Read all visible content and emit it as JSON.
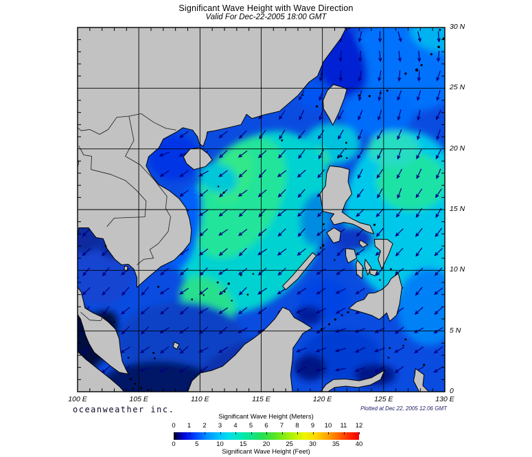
{
  "title": "Significant Wave Height with Wave Direction",
  "subtitle": "Valid For Dec-22-2005 18:00 GMT",
  "credit": "oceanweather inc.",
  "plotted_at": "Plotted at Dec 22, 2005 12.06 GMT",
  "axes": {
    "lon_labels": [
      "100 E",
      "105 E",
      "110 E",
      "115 E",
      "120 E",
      "125 E",
      "130 E"
    ],
    "lat_labels": [
      "30 N",
      "25 N",
      "20 N",
      "15 N",
      "10 N",
      "5 N",
      "0"
    ]
  },
  "colorbar": {
    "title_meters": "Significant Wave Height (Meters)",
    "title_feet": "Significant Wave Height (Feet)",
    "meters_ticks": [
      "0",
      "1",
      "2",
      "3",
      "4",
      "5",
      "6",
      "7",
      "8",
      "9",
      "10",
      "11",
      "12"
    ],
    "feet_ticks": [
      "0",
      "5",
      "10",
      "15",
      "20",
      "25",
      "30",
      "35",
      "40"
    ],
    "gradient": [
      {
        "at": 0.0,
        "color": "#000000"
      },
      {
        "at": 0.02,
        "color": "#000070"
      },
      {
        "at": 0.06,
        "color": "#0008e0"
      },
      {
        "at": 0.12,
        "color": "#0048ff"
      },
      {
        "at": 0.18,
        "color": "#0090ff"
      },
      {
        "at": 0.24,
        "color": "#00c0ff"
      },
      {
        "at": 0.3,
        "color": "#00e0e8"
      },
      {
        "at": 0.36,
        "color": "#00e8b8"
      },
      {
        "at": 0.42,
        "color": "#10e488"
      },
      {
        "at": 0.48,
        "color": "#28de52"
      },
      {
        "at": 0.54,
        "color": "#50e428"
      },
      {
        "at": 0.6,
        "color": "#8cec10"
      },
      {
        "at": 0.66,
        "color": "#c4f400"
      },
      {
        "at": 0.71,
        "color": "#f0f400"
      },
      {
        "at": 0.77,
        "color": "#ffd400"
      },
      {
        "at": 0.83,
        "color": "#ffa400"
      },
      {
        "at": 0.89,
        "color": "#ff6800"
      },
      {
        "at": 0.95,
        "color": "#ff2800"
      },
      {
        "at": 1.0,
        "color": "#ee0000"
      }
    ]
  },
  "chart_data": {
    "type": "heatmap",
    "title": "Significant Wave Height with Wave Direction",
    "valid_time": "Dec-22-2005 18:00 GMT",
    "plotted_time": "Dec 22, 2005 12.06 GMT",
    "lon_range": [
      100,
      130
    ],
    "lat_range": [
      0,
      30
    ],
    "wave_height_scale_m": [
      0,
      12
    ],
    "wave_height_scale_ft": [
      0,
      40
    ],
    "base_color": "#0a4ce0",
    "land_color": "#c2c2c2",
    "coast_color": "#000000",
    "arrow_color": "#000080",
    "field_blobs": [
      {
        "name": "east-china-sea",
        "lon": 127,
        "lat": 27,
        "rx": 5,
        "ry": 4,
        "rot": 0,
        "color": "#0072fc",
        "height_m": 1.5
      },
      {
        "name": "ne-corner",
        "lon": 129.8,
        "lat": 29.8,
        "rx": 2.6,
        "ry": 1.8,
        "rot": 0,
        "color": "#00b2f0",
        "height_m": 2
      },
      {
        "name": "china-coast-deep",
        "lon": 121.3,
        "lat": 27.6,
        "rx": 2.0,
        "ry": 3.6,
        "rot": -25,
        "color": "#0024d4",
        "height_m": 0.8
      },
      {
        "name": "east-of-taiwan",
        "lon": 124.5,
        "lat": 23,
        "rx": 3,
        "ry": 2,
        "rot": 0,
        "color": "#006cfa",
        "height_m": 1.5
      },
      {
        "name": "philippine-sea-cyan",
        "lon": 126.8,
        "lat": 14.5,
        "rx": 5.0,
        "ry": 7.0,
        "rot": 0,
        "color": "#00c8ea",
        "height_m": 2.2
      },
      {
        "name": "philippine-sea-green",
        "lon": 127.3,
        "lat": 17.3,
        "rx": 2.9,
        "ry": 2.4,
        "rot": 0,
        "color": "#1ce2a6",
        "height_m": 3
      },
      {
        "name": "philippine-sea-green-n",
        "lon": 125.8,
        "lat": 20,
        "rx": 2.1,
        "ry": 1.5,
        "rot": 0,
        "color": "#28dcc2",
        "height_m": 2.6
      },
      {
        "name": "luzon-strait",
        "lon": 120.8,
        "lat": 20.4,
        "rx": 2.3,
        "ry": 1.7,
        "rot": 0,
        "color": "#00c2de",
        "height_m": 2.3
      },
      {
        "name": "nw-luzon-green",
        "lon": 118.9,
        "lat": 19,
        "rx": 1.7,
        "ry": 1.3,
        "rot": 0,
        "color": "#26e09a",
        "height_m": 3
      },
      {
        "name": "scs-cyan-halo",
        "lon": 114.5,
        "lat": 14,
        "rx": 5.6,
        "ry": 8.0,
        "rot": 30,
        "color": "#00d2d2",
        "height_m": 2.4
      },
      {
        "name": "scs-green-core",
        "lon": 113.2,
        "lat": 16,
        "rx": 3.3,
        "ry": 5.4,
        "rot": 28,
        "color": "#22e49a",
        "height_m": 3
      },
      {
        "name": "scs-green-bright",
        "lon": 112.6,
        "lat": 17.8,
        "rx": 1.6,
        "ry": 2.4,
        "rot": 25,
        "color": "#30e88a",
        "height_m": 3.3
      },
      {
        "name": "scs-south-tongue",
        "lon": 110.6,
        "lat": 7.4,
        "rx": 2.5,
        "ry": 1.8,
        "rot": 40,
        "color": "#28e08e",
        "height_m": 3
      },
      {
        "name": "vietnam-coast-band",
        "lon": 108.8,
        "lat": 13.5,
        "rx": 1.2,
        "ry": 3.6,
        "rot": 12,
        "color": "#0060f8",
        "height_m": 1.2
      },
      {
        "name": "gulf-of-tonkin",
        "lon": 107.9,
        "lat": 19.3,
        "rx": 2.1,
        "ry": 1.9,
        "rot": 0,
        "color": "#0036e6",
        "height_m": 0.9
      },
      {
        "name": "se-hainan-cyan",
        "lon": 111.5,
        "lat": 17.6,
        "rx": 1.6,
        "ry": 1.2,
        "rot": 20,
        "color": "#00c8d8",
        "height_m": 2.3
      },
      {
        "name": "gulf-of-thailand",
        "lon": 101.9,
        "lat": 10.2,
        "rx": 2.7,
        "ry": 3.1,
        "rot": 0,
        "color": "#1244d2",
        "height_m": 1
      },
      {
        "name": "gulf-thai-head-dark",
        "lon": 100.5,
        "lat": 12.7,
        "rx": 1.5,
        "ry": 1.3,
        "rot": 0,
        "color": "#0a2c9e",
        "height_m": 0.5
      },
      {
        "name": "gulf-thai-east-dark",
        "lon": 102.9,
        "lat": 11.9,
        "rx": 1.1,
        "ry": 0.9,
        "rot": 0,
        "color": "#0a2c9e",
        "height_m": 0.5
      },
      {
        "name": "sunda-shelf",
        "lon": 108.5,
        "lat": 4.2,
        "rx": 5.2,
        "ry": 3.2,
        "rot": 0,
        "color": "#0a42c6",
        "height_m": 1
      },
      {
        "name": "borneo-coast-dark",
        "lon": 112.8,
        "lat": 2.6,
        "rx": 3.2,
        "ry": 1.1,
        "rot": -28,
        "color": "#0830ae",
        "height_m": 0.7
      },
      {
        "name": "karimata-navy",
        "lon": 106.6,
        "lat": 0.7,
        "rx": 4.6,
        "ry": 1.8,
        "rot": 0,
        "color": "#001266",
        "height_m": 0.3
      },
      {
        "name": "malacca-strait",
        "lon": 100.9,
        "lat": 3.9,
        "rx": 1.7,
        "ry": 3.3,
        "rot": 38,
        "color": "#000a40",
        "height_m": 0.1
      },
      {
        "name": "malacca-north",
        "lon": 99.9,
        "lat": 5.9,
        "rx": 1.1,
        "ry": 1.3,
        "rot": 0,
        "color": "#000a40",
        "height_m": 0.1
      },
      {
        "name": "sulu-sea",
        "lon": 120.2,
        "lat": 7.6,
        "rx": 2.1,
        "ry": 1.7,
        "rot": 0,
        "color": "#0044e4",
        "height_m": 0.9
      },
      {
        "name": "sulu-dark",
        "lon": 118.9,
        "lat": 6.3,
        "rx": 1.1,
        "ry": 0.8,
        "rot": 0,
        "color": "#001e9a",
        "height_m": 0.4
      },
      {
        "name": "celebes-sea",
        "lon": 121.5,
        "lat": 3,
        "rx": 3.3,
        "ry": 2.1,
        "rot": 0,
        "color": "#003ed2",
        "height_m": 0.8
      },
      {
        "name": "celebes-dark-w",
        "lon": 119,
        "lat": 2,
        "rx": 1.3,
        "ry": 1.1,
        "rot": 0,
        "color": "#001284",
        "height_m": 0.4
      },
      {
        "name": "celebes-dark-e",
        "lon": 124.3,
        "lat": 1.4,
        "rx": 1.7,
        "ry": 0.9,
        "rot": 0,
        "color": "#001488",
        "height_m": 0.4
      },
      {
        "name": "east-of-mindanao",
        "lon": 128.7,
        "lat": 7,
        "rx": 2.6,
        "ry": 3.2,
        "rot": 0,
        "color": "#0082f6",
        "height_m": 1.6
      },
      {
        "name": "sibuyan-sea",
        "lon": 122.6,
        "lat": 12.6,
        "rx": 1.6,
        "ry": 1.1,
        "rot": 0,
        "color": "#0838c6",
        "height_m": 0.8
      },
      {
        "name": "taiwan-strait",
        "lon": 119.4,
        "lat": 24.4,
        "rx": 1.4,
        "ry": 1.1,
        "rot": 0,
        "color": "#0054f2",
        "height_m": 1.2
      },
      {
        "name": "west-luzon-coast",
        "lon": 119.5,
        "lat": 14.2,
        "rx": 1.3,
        "ry": 2.2,
        "rot": 8,
        "color": "#008ce0",
        "height_m": 1.8
      }
    ],
    "flow": [
      {
        "lon": 126.5,
        "lat": 28.5,
        "to": 158
      },
      {
        "lon": 122,
        "lat": 27,
        "to": 180
      },
      {
        "lon": 120,
        "lat": 24.5,
        "to": 195
      },
      {
        "lon": 124.5,
        "lat": 23.5,
        "to": 195
      },
      {
        "lon": 127.5,
        "lat": 21,
        "to": 195
      },
      {
        "lon": 126.5,
        "lat": 17,
        "to": 205
      },
      {
        "lon": 128,
        "lat": 13,
        "to": 215
      },
      {
        "lon": 127.5,
        "lat": 8,
        "to": 225
      },
      {
        "lon": 124.5,
        "lat": 11.5,
        "to": 230
      },
      {
        "lon": 121,
        "lat": 20.5,
        "to": 212
      },
      {
        "lon": 117.5,
        "lat": 17.5,
        "to": 228
      },
      {
        "lon": 113.5,
        "lat": 13.5,
        "to": 228
      },
      {
        "lon": 115,
        "lat": 9,
        "to": 228
      },
      {
        "lon": 110.5,
        "lat": 16,
        "to": 235
      },
      {
        "lon": 108.2,
        "lat": 19.3,
        "to": 248
      },
      {
        "lon": 106.5,
        "lat": 13,
        "to": 235
      },
      {
        "lon": 109.5,
        "lat": 10.5,
        "to": 232
      },
      {
        "lon": 104.5,
        "lat": 8.5,
        "to": 222
      },
      {
        "lon": 101.5,
        "lat": 10.5,
        "to": 220
      },
      {
        "lon": 101,
        "lat": 6.5,
        "to": 215
      },
      {
        "lon": 107.5,
        "lat": 4.5,
        "to": 235
      },
      {
        "lon": 110.5,
        "lat": 3,
        "to": 238
      },
      {
        "lon": 105.5,
        "lat": 1.5,
        "to": 248
      },
      {
        "lon": 113.5,
        "lat": 6,
        "to": 232
      },
      {
        "lon": 119.8,
        "lat": 7.5,
        "to": 242
      },
      {
        "lon": 121.5,
        "lat": 3,
        "to": 262
      },
      {
        "lon": 124,
        "lat": 4.5,
        "to": 250
      },
      {
        "lon": 117,
        "lat": 5,
        "to": 252
      },
      {
        "lon": 128.5,
        "lat": 3.5,
        "to": 238
      },
      {
        "lon": 103.5,
        "lat": 2,
        "to": 232
      }
    ]
  }
}
